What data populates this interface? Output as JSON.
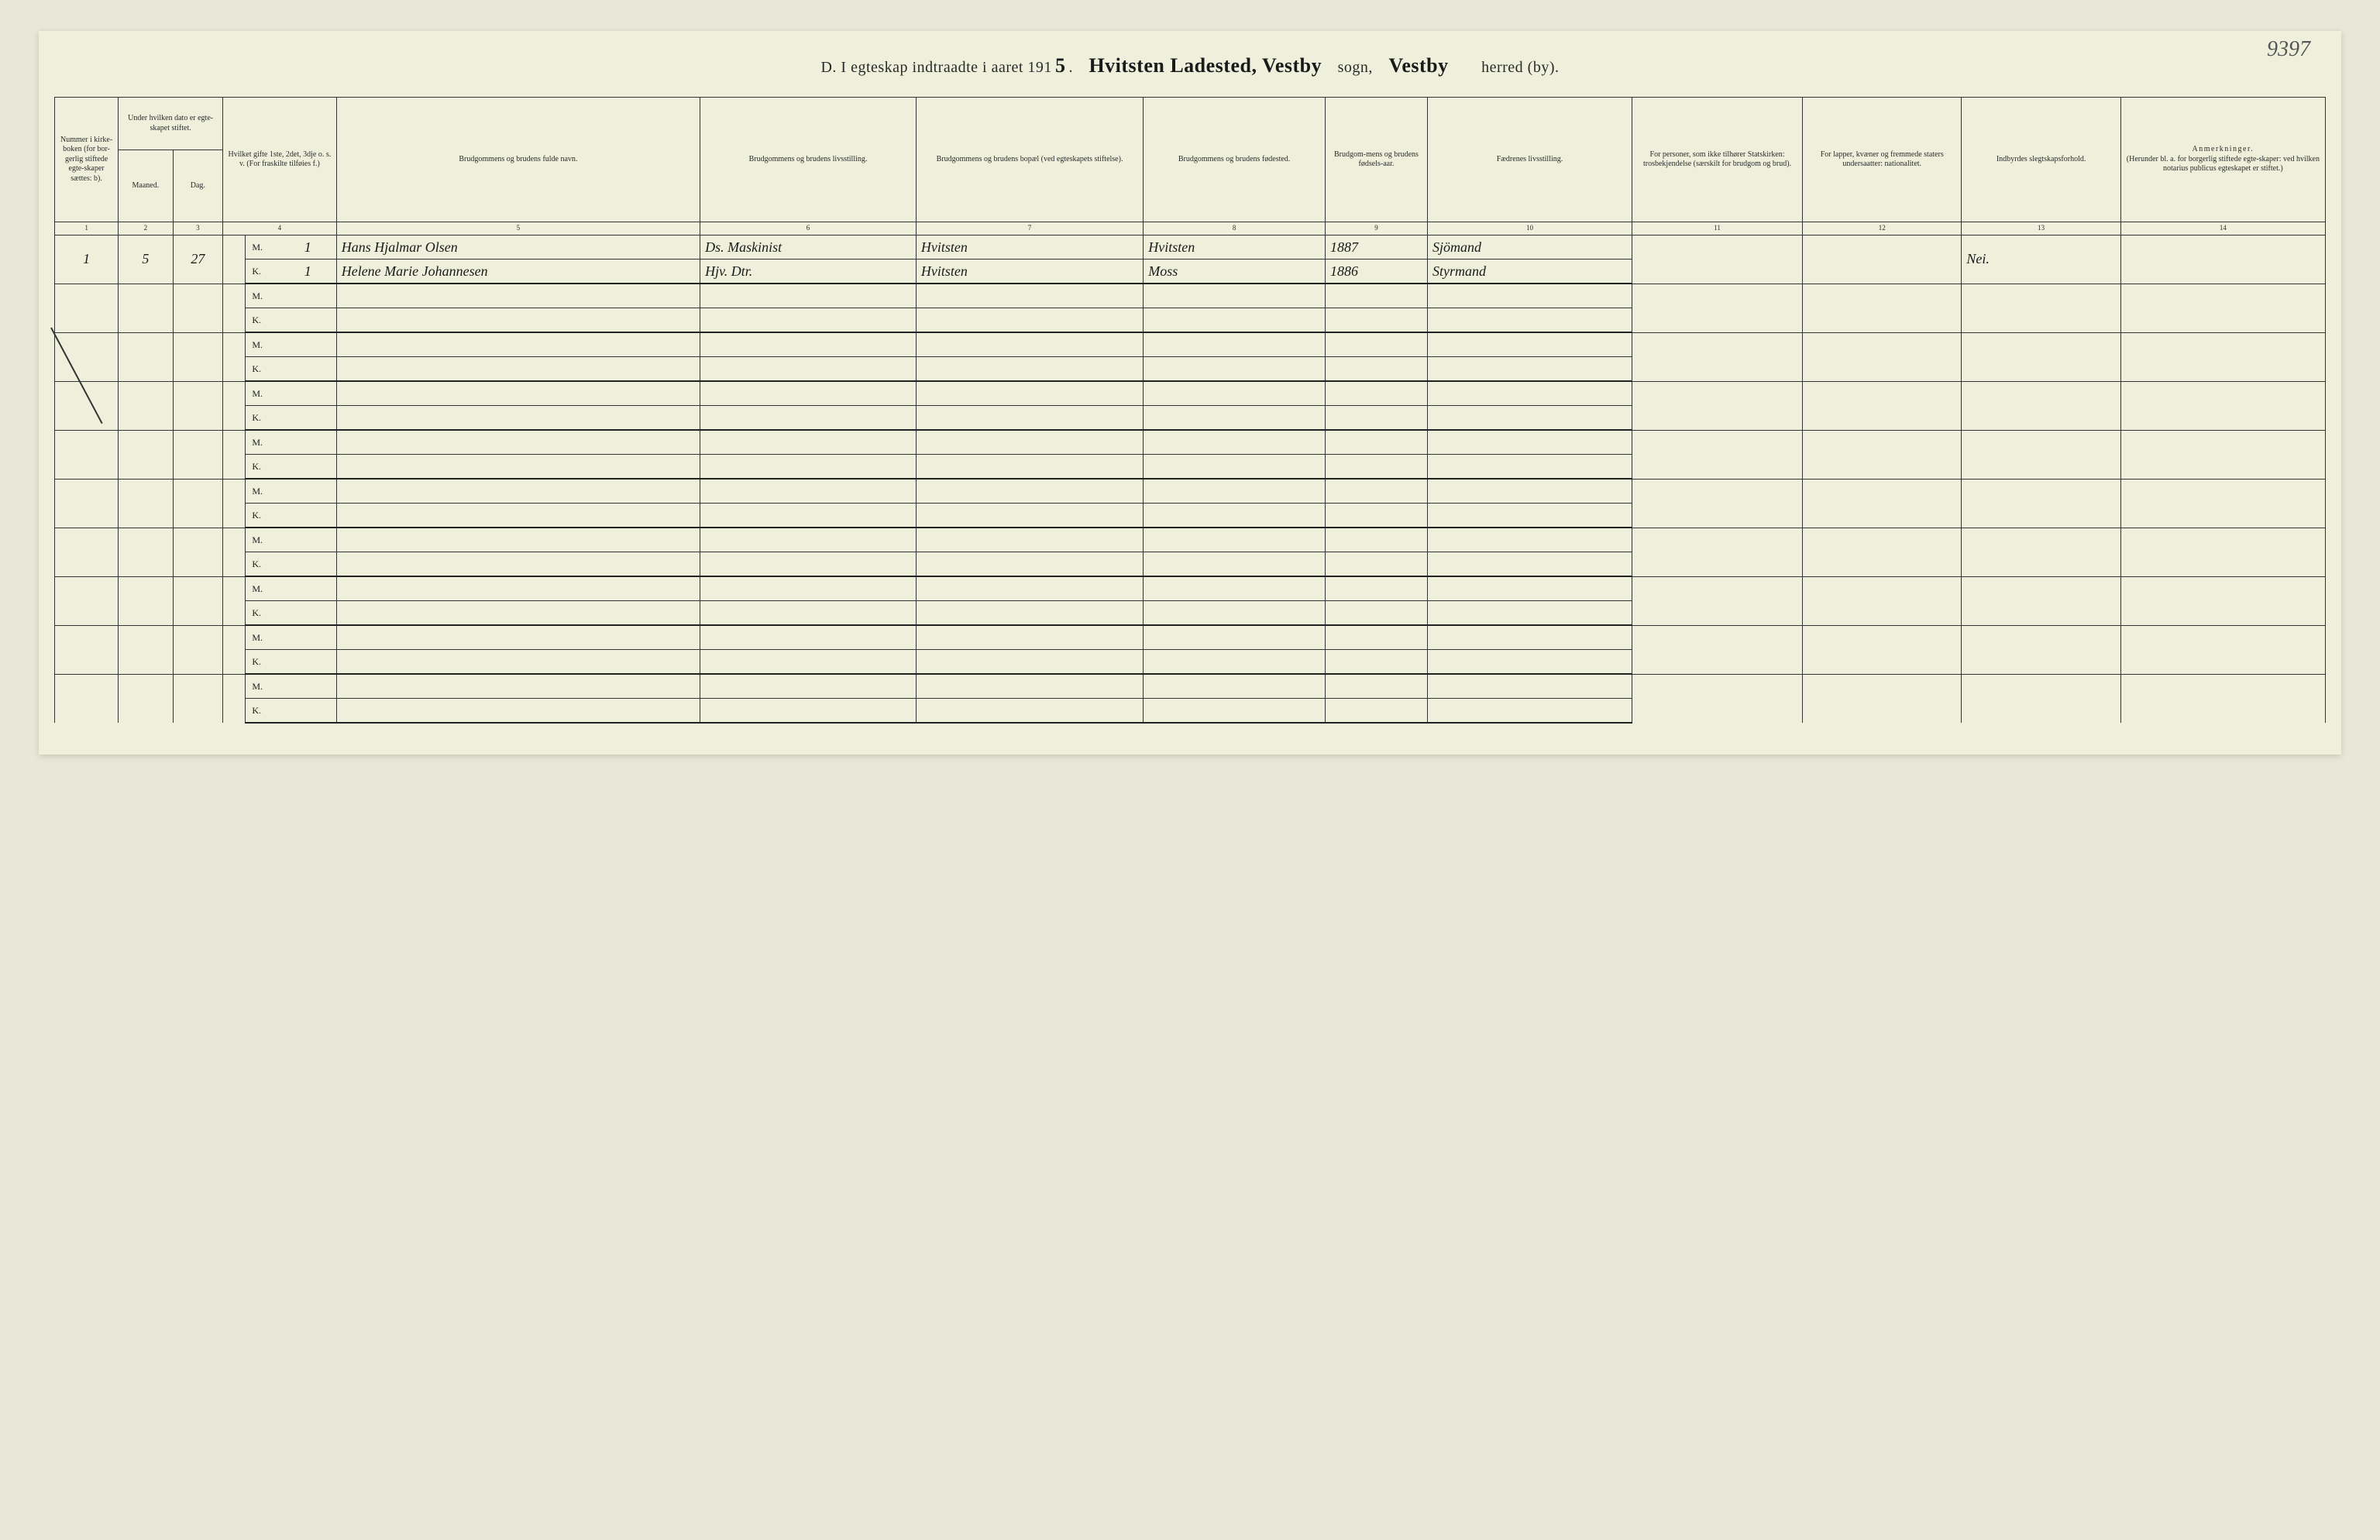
{
  "page_number_hand": "9397",
  "title": {
    "prefix": "D.  I egteskap indtraadte i aaret 191",
    "year_digit_hand": "5",
    "dot": ".",
    "place_hand": "Hvitsten Ladested, Vestby",
    "sogn": "sogn,",
    "herred_hand": "Vestby",
    "herred_by": "herred (by)."
  },
  "columns": {
    "c1": "Nummer i kirke-boken (for bor-gerlig stiftede egte-skaper sættes: b).",
    "c2_top": "Under hvilken dato er egte-skapet stiftet.",
    "c2_m": "Maaned.",
    "c2_d": "Dag.",
    "c4": "Hvilket gifte 1ste, 2det, 3dje o. s. v. (For fraskilte tilføies f.)",
    "c5": "Brudgommens og brudens fulde navn.",
    "c6": "Brudgommens og brudens livsstilling.",
    "c7": "Brudgommens og brudens bopæl (ved egteskapets stiftelse).",
    "c8": "Brudgommens og brudens fødested.",
    "c9": "Brudgom-mens og brudens fødsels-aar.",
    "c10": "Fædrenes livsstilling.",
    "c11": "For personer, som ikke tilhører Statskirken: trosbekjendelse (særskilt for brudgom og brud).",
    "c12": "For lapper, kvæner og fremmede staters undersaatter: nationalitet.",
    "c13": "Indbyrdes slegtskapsforhold.",
    "c14": "Anmerkninger. (Herunder bl. a. for borgerlig stiftede egte-skaper: ved hvilken notarius publicus egteskapet er stiftet.)"
  },
  "colnums": [
    "1",
    "2",
    "3",
    "4",
    "5",
    "6",
    "7",
    "8",
    "9",
    "10",
    "11",
    "12",
    "13",
    "14"
  ],
  "mk_m": "M.",
  "mk_k": "K.",
  "entries": [
    {
      "num": "1",
      "month": "5",
      "day": "27",
      "m": {
        "gifte": "1",
        "name": "Hans Hjalmar Olsen",
        "stilling": "Ds. Maskinist",
        "bopael": "Hvitsten",
        "fodested": "Hvitsten",
        "aar": "1887",
        "far": "Sjömand"
      },
      "k": {
        "gifte": "1",
        "name": "Helene Marie Johannesen",
        "stilling": "Hjv. Dtr.",
        "bopael": "Hvitsten",
        "fodested": "Moss",
        "aar": "1886",
        "far": "Styrmand"
      },
      "c11": "",
      "c12": "",
      "c13": "Nei.",
      "c14": ""
    }
  ],
  "empty_pair_count": 9,
  "colors": {
    "paper": "#eff0dc",
    "ink": "#2a2a2a",
    "rule": "#333333"
  }
}
